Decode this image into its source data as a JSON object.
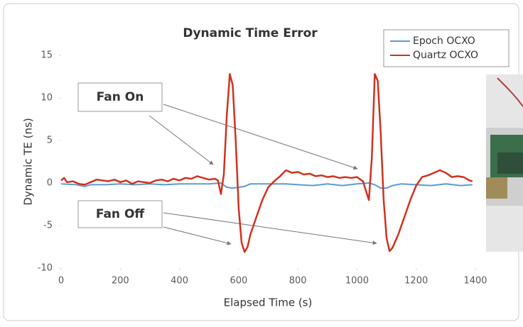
{
  "chart_data": {
    "type": "line",
    "title": "Dynamic Time Error",
    "x_label": "Elapsed Time (s)",
    "y_label": "Dynamic TE (ns)",
    "xlim": [
      0,
      1400
    ],
    "xticks": [
      0,
      200,
      400,
      600,
      800,
      1000,
      1200,
      1400
    ],
    "ylim": [
      -10,
      15
    ],
    "yticks": [
      -10,
      -5,
      0,
      5,
      10,
      15
    ],
    "grid": false,
    "legend": "upper right",
    "series": [
      {
        "name": "Epoch OCXO",
        "color": "#5b9bd5",
        "x": [
          0,
          50,
          80,
          100,
          150,
          200,
          250,
          300,
          350,
          400,
          450,
          500,
          540,
          560,
          580,
          600,
          620,
          640,
          700,
          760,
          800,
          850,
          900,
          950,
          1000,
          1040,
          1060,
          1080,
          1100,
          1120,
          1150,
          1200,
          1250,
          1300,
          1350,
          1390
        ],
        "values": [
          -0.1,
          -0.2,
          -0.4,
          -0.2,
          -0.2,
          -0.1,
          -0.2,
          -0.1,
          -0.2,
          -0.1,
          -0.1,
          -0.1,
          0.0,
          -0.5,
          -0.6,
          -0.5,
          -0.4,
          -0.1,
          -0.1,
          -0.1,
          -0.2,
          -0.3,
          -0.1,
          -0.3,
          -0.1,
          0.0,
          -0.2,
          -0.6,
          -0.6,
          -0.3,
          -0.1,
          -0.2,
          -0.3,
          -0.1,
          -0.3,
          -0.2
        ]
      },
      {
        "name": "Quartz OCXO",
        "color": "#d0321e",
        "x": [
          0,
          10,
          20,
          40,
          60,
          80,
          100,
          120,
          140,
          160,
          180,
          200,
          220,
          240,
          260,
          280,
          300,
          320,
          340,
          360,
          380,
          400,
          420,
          440,
          460,
          480,
          500,
          520,
          530,
          540,
          550,
          560,
          570,
          580,
          590,
          600,
          610,
          620,
          630,
          640,
          660,
          680,
          700,
          720,
          740,
          760,
          780,
          800,
          820,
          840,
          860,
          880,
          900,
          920,
          940,
          960,
          980,
          1000,
          1020,
          1040,
          1050,
          1060,
          1070,
          1080,
          1090,
          1100,
          1110,
          1120,
          1140,
          1160,
          1180,
          1200,
          1220,
          1240,
          1260,
          1280,
          1300,
          1320,
          1340,
          1360,
          1380,
          1390
        ],
        "values": [
          0.3,
          0.6,
          0.1,
          0.2,
          -0.1,
          -0.2,
          0.1,
          0.4,
          0.3,
          0.2,
          0.4,
          0.1,
          0.3,
          -0.1,
          0.2,
          0.1,
          0.0,
          0.3,
          0.4,
          0.2,
          0.5,
          0.3,
          0.6,
          0.5,
          0.8,
          0.6,
          0.4,
          0.5,
          0.3,
          -1.3,
          1.0,
          8,
          12.8,
          11.5,
          5,
          -3,
          -7,
          -8.1,
          -7.5,
          -6,
          -4,
          -2,
          -0.5,
          0.2,
          0.8,
          1.5,
          1.2,
          1.3,
          1.0,
          1.1,
          0.8,
          0.9,
          0.7,
          0.8,
          0.6,
          0.7,
          0.6,
          0.7,
          0.2,
          -2.0,
          3,
          12.8,
          12,
          6,
          -2,
          -6.5,
          -8.0,
          -7.6,
          -6,
          -4,
          -2,
          -0.3,
          0.7,
          0.9,
          1.2,
          1.5,
          1.2,
          0.7,
          0.8,
          0.7,
          0.3,
          0.2
        ]
      }
    ],
    "annotations": [
      {
        "text": "Fan On"
      },
      {
        "text": "Fan Off"
      }
    ]
  }
}
